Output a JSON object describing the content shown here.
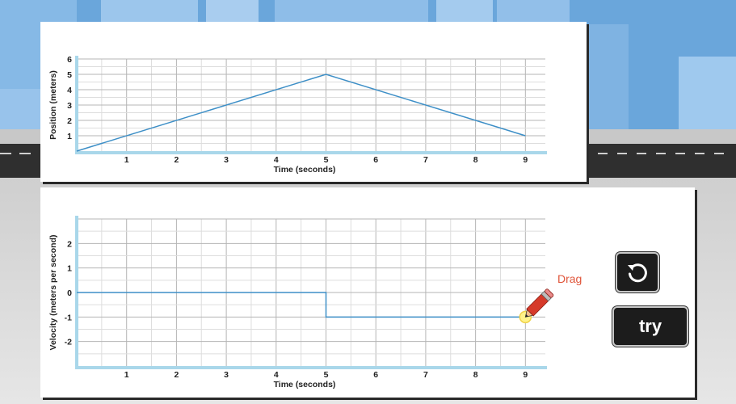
{
  "scene": {
    "sky_color": "#6aa6db",
    "road_color": "#2f2f2f",
    "ground_color": "#d6d6d6"
  },
  "position_graph": {
    "ylabel": "Position (meters)",
    "xlabel": "Time (seconds)",
    "x_ticks": [
      "1",
      "2",
      "3",
      "4",
      "5",
      "6",
      "7",
      "8",
      "9"
    ],
    "y_ticks": [
      "1",
      "2",
      "3",
      "4",
      "5",
      "6"
    ],
    "line_color": "#3d8fc7"
  },
  "velocity_graph": {
    "ylabel": "Velocity (meters per second)",
    "xlabel": "Time (seconds)",
    "x_ticks": [
      "1",
      "2",
      "3",
      "4",
      "5",
      "6",
      "7",
      "8",
      "9"
    ],
    "y_ticks": [
      "2",
      "1",
      "0",
      "-1",
      "-2"
    ],
    "line_color": "#3d8fc7"
  },
  "chart_data": [
    {
      "type": "line",
      "xlabel": "Time (seconds)",
      "ylabel": "Position (meters)",
      "xlim": [
        0,
        9.4
      ],
      "ylim": [
        0,
        6
      ],
      "x": [
        0,
        5,
        9
      ],
      "y": [
        0,
        5,
        1
      ]
    },
    {
      "type": "line",
      "xlabel": "Time (seconds)",
      "ylabel": "Velocity (meters per second)",
      "xlim": [
        0,
        9.4
      ],
      "ylim": [
        -3,
        3
      ],
      "x": [
        0,
        5,
        5,
        9
      ],
      "y": [
        0,
        0,
        -1,
        -1
      ]
    }
  ],
  "controls": {
    "drag_label": "Drag",
    "reset_icon": "rotate-ccw-icon",
    "try_label": "try",
    "pencil_icon": "pencil-icon",
    "pencil_color": "#d63a2a"
  }
}
